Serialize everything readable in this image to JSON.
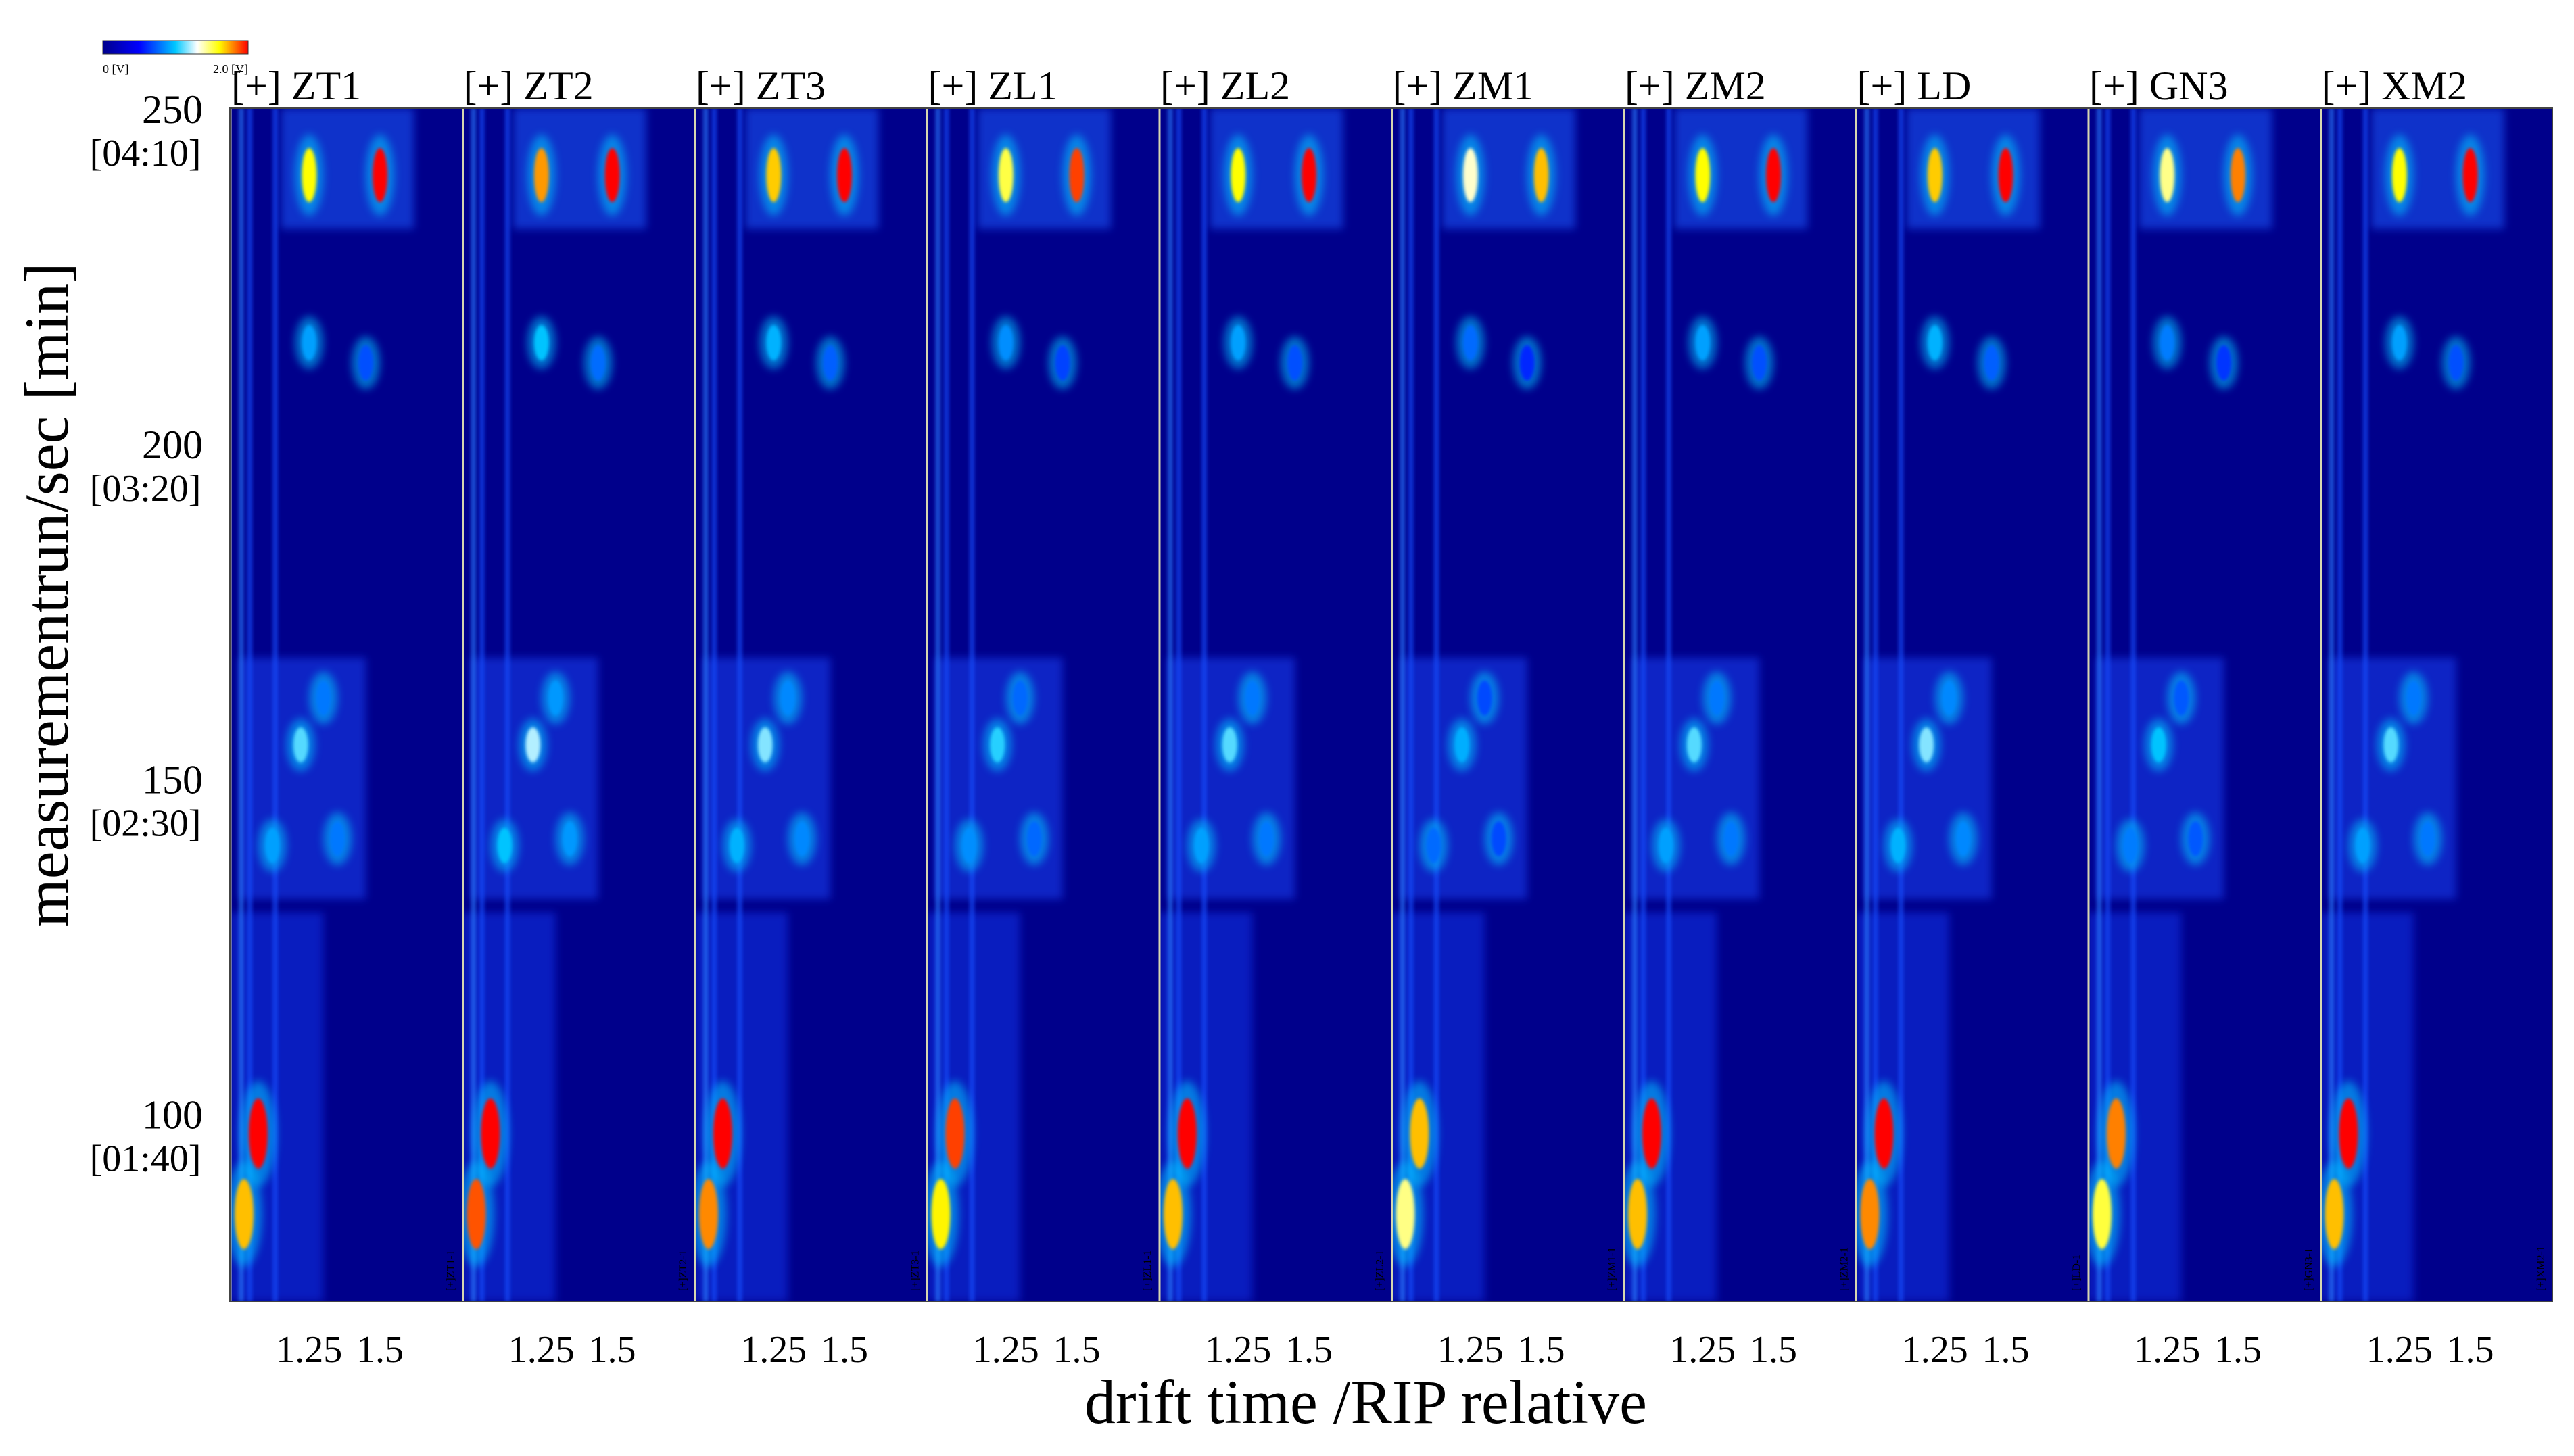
{
  "chart_data": {
    "type": "heatmap",
    "title": "",
    "xlabel": "drift time /RIP relative",
    "ylabel": "measurementrun/sec [min]",
    "ylim": [
      72,
      250
    ],
    "colorbar": {
      "min_label": "0 [V]",
      "max_label": "2.0 [V]",
      "range": [
        0,
        2.0
      ],
      "stops": [
        "#00008b",
        "#0000ff",
        "#00c8ff",
        "#ffffff",
        "#ffff00",
        "#ff0000"
      ]
    },
    "y_ticks": [
      {
        "value": 250,
        "label": "250",
        "time_label": "[04:10]"
      },
      {
        "value": 200,
        "label": "200",
        "time_label": "[03:20]"
      },
      {
        "value": 150,
        "label": "150",
        "time_label": "[02:30]"
      },
      {
        "value": 100,
        "label": "100",
        "time_label": "[01:40]"
      }
    ],
    "x_ticks": [
      {
        "value": 1.25,
        "label": "1.25"
      },
      {
        "value": 1.5,
        "label": "1.5"
      }
    ],
    "panels": [
      {
        "name": "ZT1",
        "title": "[+] ZT1",
        "tag": "[+]ZT1-1"
      },
      {
        "name": "ZT2",
        "title": "[+] ZT2",
        "tag": "[+]ZT2-1"
      },
      {
        "name": "ZT3",
        "title": "[+] ZT3",
        "tag": "[+]ZT3-1"
      },
      {
        "name": "ZL1",
        "title": "[+] ZL1",
        "tag": "[+]ZL1-1"
      },
      {
        "name": "ZL2",
        "title": "[+] ZL2",
        "tag": "[+]ZL2-1"
      },
      {
        "name": "ZM1",
        "title": "[+] ZM1",
        "tag": "[+]ZM1-1"
      },
      {
        "name": "ZM2",
        "title": "[+] ZM2",
        "tag": "[+]ZM2-1"
      },
      {
        "name": "LD",
        "title": "[+] LD",
        "tag": "[+]LD-1"
      },
      {
        "name": "GN3",
        "title": "[+] GN3",
        "tag": "[+]GN3-1"
      },
      {
        "name": "XM2",
        "title": "[+] XM2",
        "tag": "[+]XM2-1"
      }
    ],
    "peaks": [
      {
        "x": 1.25,
        "y": 240,
        "intensity": 1.6
      },
      {
        "x": 1.5,
        "y": 240,
        "intensity": 2.0
      },
      {
        "x": 1.25,
        "y": 215,
        "intensity": 0.9
      },
      {
        "x": 1.45,
        "y": 212,
        "intensity": 0.7
      },
      {
        "x": 1.3,
        "y": 162,
        "intensity": 0.8
      },
      {
        "x": 1.22,
        "y": 155,
        "intensity": 1.1
      },
      {
        "x": 1.12,
        "y": 140,
        "intensity": 0.9
      },
      {
        "x": 1.35,
        "y": 141,
        "intensity": 0.8
      },
      {
        "x": 1.07,
        "y": 97,
        "intensity": 2.0
      },
      {
        "x": 1.02,
        "y": 85,
        "intensity": 1.7
      }
    ]
  }
}
